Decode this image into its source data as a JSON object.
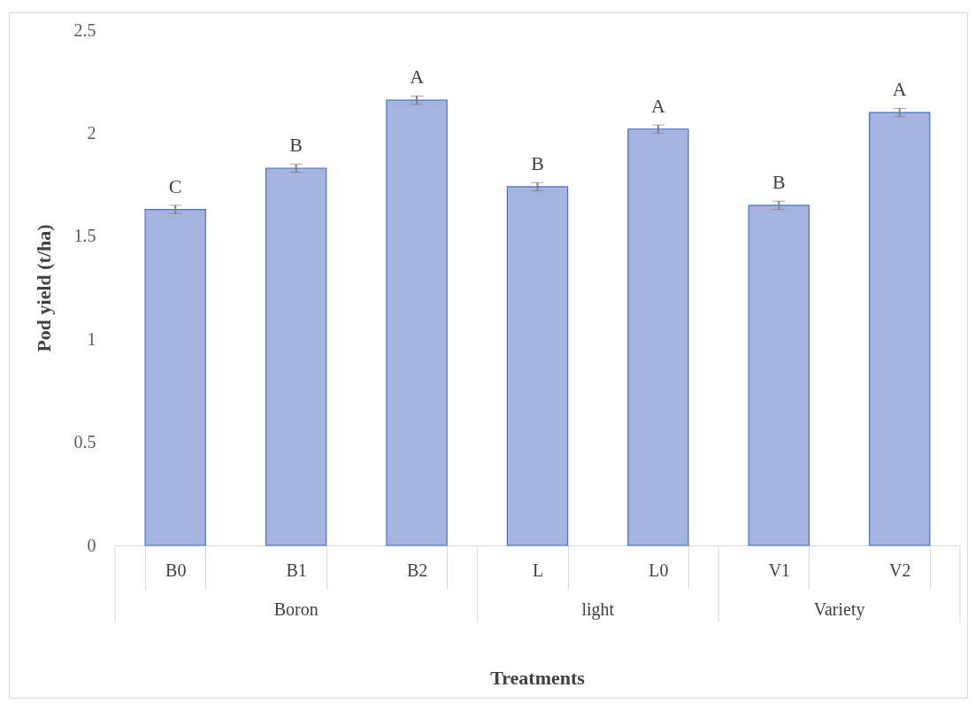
{
  "chart_data": {
    "type": "bar",
    "xlabel": "Treatments",
    "ylabel": "Pod yield (t/ha)",
    "categories": [
      "B0",
      "B1",
      "B2",
      "L",
      "L0",
      "V1",
      "V2"
    ],
    "values": [
      1.63,
      1.83,
      2.16,
      1.74,
      2.02,
      1.65,
      2.1
    ],
    "errors": [
      0.02,
      0.02,
      0.02,
      0.02,
      0.02,
      0.02,
      0.02
    ],
    "color": "#a4b3df",
    "ylim": [
      0,
      2.5
    ],
    "yticks": [
      0,
      0.5,
      1,
      1.5,
      2,
      2.5
    ],
    "grid": false,
    "annotations": [
      {
        "text": "C",
        "x": "B0",
        "y": 1.63
      },
      {
        "text": "B",
        "x": "B1",
        "y": 1.83
      },
      {
        "text": "A",
        "x": "B2",
        "y": 2.16
      },
      {
        "text": "B",
        "x": "L",
        "y": 1.74
      },
      {
        "text": "A",
        "x": "L0",
        "y": 2.02
      },
      {
        "text": "B",
        "x": "V1",
        "y": 1.65
      },
      {
        "text": "A",
        "x": "V2",
        "y": 2.1
      },
      "Boron",
      "light",
      "Variety"
    ]
  }
}
